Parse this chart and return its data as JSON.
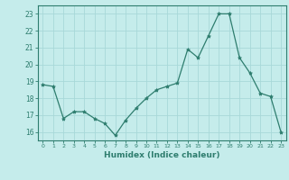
{
  "x": [
    0,
    1,
    2,
    3,
    4,
    5,
    6,
    7,
    8,
    9,
    10,
    11,
    12,
    13,
    14,
    15,
    16,
    17,
    18,
    19,
    20,
    21,
    22,
    23
  ],
  "y": [
    18.8,
    18.7,
    16.8,
    17.2,
    17.2,
    16.8,
    16.5,
    15.8,
    16.7,
    17.4,
    18.0,
    18.5,
    18.7,
    18.9,
    20.9,
    20.4,
    21.7,
    23.0,
    23.0,
    20.4,
    19.5,
    18.3,
    18.1,
    16.0
  ],
  "line_color": "#2e7d6e",
  "marker": "*",
  "marker_size": 3,
  "bg_color": "#c5eceb",
  "grid_color": "#a8d8d8",
  "xlabel": "Humidex (Indice chaleur)",
  "xlim": [
    -0.5,
    23.5
  ],
  "ylim": [
    15.5,
    23.5
  ],
  "yticks": [
    16,
    17,
    18,
    19,
    20,
    21,
    22,
    23
  ],
  "xticks": [
    0,
    1,
    2,
    3,
    4,
    5,
    6,
    7,
    8,
    9,
    10,
    11,
    12,
    13,
    14,
    15,
    16,
    17,
    18,
    19,
    20,
    21,
    22,
    23
  ]
}
